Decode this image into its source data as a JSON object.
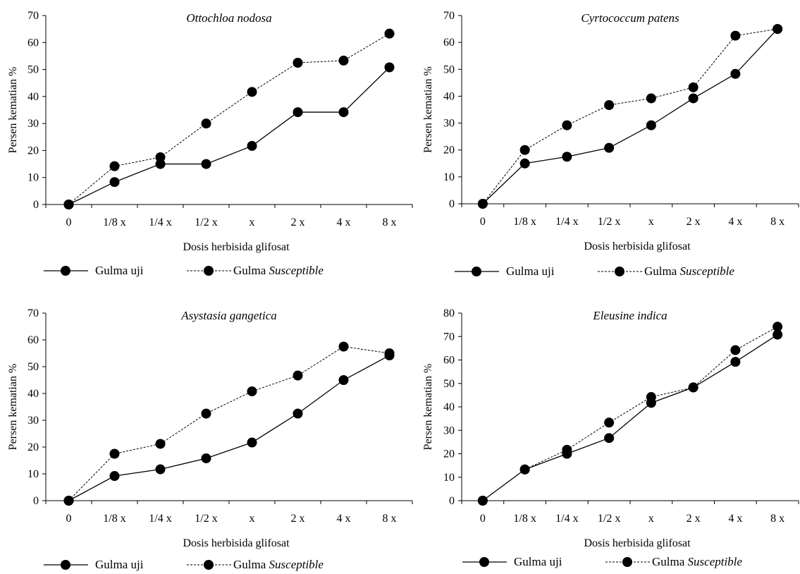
{
  "figure": {
    "legend": {
      "series1": "Gulma uji",
      "series2_prefix": "Gulma",
      "series2_italic": "Susceptible"
    }
  },
  "chart_data": [
    {
      "type": "line",
      "title": "Ottochloa nodosa",
      "xlabel": "Dosis herbisida glifosat",
      "ylabel": "Persen kematian %",
      "categories": [
        "0",
        "1/8 x",
        "1/4 x",
        "1/2 x",
        "x",
        "2 x",
        "4 x",
        "8 x"
      ],
      "ylim": [
        0,
        70
      ],
      "yticks": [
        0,
        10,
        20,
        30,
        40,
        50,
        60,
        70
      ],
      "legend_position": "bottom",
      "series": [
        {
          "name": "Gulma uji",
          "style": "solid",
          "values": [
            0,
            8.3,
            15,
            15,
            21.7,
            34.2,
            34.2,
            50.8
          ]
        },
        {
          "name": "Gulma Susceptible",
          "style": "dotted",
          "values": [
            0,
            14.2,
            17.5,
            30,
            41.7,
            52.5,
            53.3,
            63.3
          ]
        }
      ]
    },
    {
      "type": "line",
      "title": "Cyrtococcum patens",
      "xlabel": "Dosis herbisida glifosat",
      "ylabel": "Persen kematian %",
      "categories": [
        "0",
        "1/8 x",
        "1/4 x",
        "1/2 x",
        "x",
        "2 x",
        "4 x",
        "8 x"
      ],
      "ylim": [
        0,
        70
      ],
      "yticks": [
        0,
        10,
        20,
        30,
        40,
        50,
        60,
        70
      ],
      "legend_position": "bottom",
      "series": [
        {
          "name": "Gulma uji",
          "style": "solid",
          "values": [
            0,
            15,
            17.5,
            20.8,
            29.2,
            39.2,
            48.3,
            65
          ]
        },
        {
          "name": "Gulma Susceptible",
          "style": "dotted",
          "values": [
            0,
            20,
            29.2,
            36.7,
            39.2,
            43.3,
            62.5,
            65
          ]
        }
      ]
    },
    {
      "type": "line",
      "title": "Asystasia gangetica",
      "xlabel": "Dosis herbisida glifosat",
      "ylabel": "Persen kematian %",
      "categories": [
        "0",
        "1/8 x",
        "1/4 x",
        "1/2 x",
        "x",
        "2 x",
        "4 x",
        "8 x"
      ],
      "ylim": [
        0,
        70
      ],
      "yticks": [
        0,
        10,
        20,
        30,
        40,
        50,
        60,
        70
      ],
      "legend_position": "bottom",
      "series": [
        {
          "name": "Gulma uji",
          "style": "solid",
          "values": [
            0,
            9.2,
            11.7,
            15.8,
            21.7,
            32.5,
            45,
            54.2
          ]
        },
        {
          "name": "Gulma Susceptible",
          "style": "dotted",
          "values": [
            0,
            17.5,
            21.2,
            32.5,
            40.8,
            46.7,
            57.5,
            55
          ]
        }
      ]
    },
    {
      "type": "line",
      "title": "Eleusine indica",
      "xlabel": "Dosis herbisida glifosat",
      "ylabel": "Persen kematian %",
      "categories": [
        "0",
        "1/8 x",
        "1/4 x",
        "1/2 x",
        "x",
        "2 x",
        "4 x",
        "8 x"
      ],
      "ylim": [
        0,
        80
      ],
      "yticks": [
        0,
        10,
        20,
        30,
        40,
        50,
        60,
        70,
        80
      ],
      "legend_position": "bottom",
      "series": [
        {
          "name": "Gulma uji",
          "style": "solid",
          "values": [
            0,
            13.3,
            20,
            26.7,
            41.7,
            48.3,
            59.2,
            70.8
          ]
        },
        {
          "name": "Gulma Susceptible",
          "style": "dotted",
          "values": [
            0,
            13.3,
            21.7,
            33.3,
            44.2,
            48.3,
            64.2,
            74.2
          ]
        }
      ]
    }
  ]
}
